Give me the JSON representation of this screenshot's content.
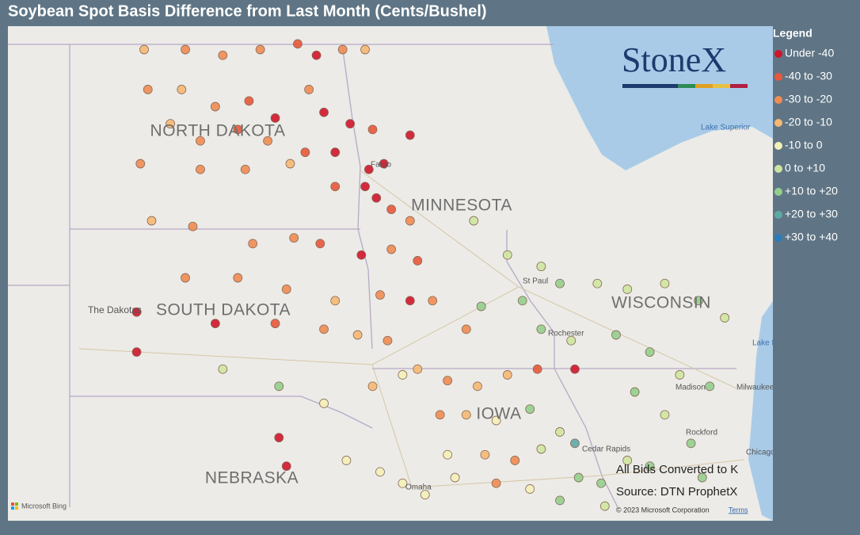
{
  "title": "Soybean Spot Basis Difference from Last Month (Cents/Bushel)",
  "legend": {
    "title": "Legend",
    "items": [
      {
        "label": "Under -40",
        "color": "#d0152b"
      },
      {
        "label": "-40 to -30",
        "color": "#e8583a"
      },
      {
        "label": "-30 to -20",
        "color": "#f08c52"
      },
      {
        "label": "-20 to -10",
        "color": "#f6b872"
      },
      {
        "label": "-10 to 0",
        "color": "#f4f1b8"
      },
      {
        "label": "0 to +10",
        "color": "#cfe59f"
      },
      {
        "label": "+10 to +20",
        "color": "#93cf8c"
      },
      {
        "label": "+20 to +30",
        "color": "#5fa9a3"
      },
      {
        "label": "+30 to +40",
        "color": "#2b7cbb"
      }
    ]
  },
  "logo": "StoneX",
  "map_labels": {
    "states": [
      "NORTH DAKOTA",
      "MINNESOTA",
      "SOUTH DAKOTA",
      "WISCONSIN",
      "NEBRASKA",
      "IOWA",
      "The Dakotas"
    ],
    "cities": [
      "Fargo",
      "St Paul",
      "Rochester",
      "Madison",
      "Milwaukee",
      "Rockford",
      "Cedar Rapids",
      "Omaha",
      "Chicago"
    ],
    "water": [
      "Lake Superior",
      "Lake Michigan"
    ]
  },
  "notes": [
    "All Bids Converted to K",
    "Source: DTN ProphetX"
  ],
  "attribution": {
    "copyright": "© 2023 Microsoft Corporation",
    "terms": "Terms",
    "provider": "Microsoft Bing"
  },
  "points": [
    [
      -103.1,
      48.9,
      3
    ],
    [
      -102.0,
      48.9,
      2
    ],
    [
      -101.0,
      48.8,
      2
    ],
    [
      -100.0,
      48.9,
      2
    ],
    [
      -99.0,
      49.0,
      1
    ],
    [
      -98.5,
      48.8,
      0
    ],
    [
      -97.8,
      48.9,
      2
    ],
    [
      -97.2,
      48.9,
      3
    ],
    [
      -103.0,
      48.2,
      2
    ],
    [
      -102.1,
      48.2,
      3
    ],
    [
      -101.2,
      47.9,
      2
    ],
    [
      -100.3,
      48.0,
      1
    ],
    [
      -99.6,
      47.7,
      0
    ],
    [
      -98.7,
      48.2,
      2
    ],
    [
      -98.3,
      47.8,
      0
    ],
    [
      -97.6,
      47.6,
      0
    ],
    [
      -97.0,
      47.5,
      1
    ],
    [
      -96.0,
      47.4,
      0
    ],
    [
      -102.4,
      47.6,
      3
    ],
    [
      -101.6,
      47.3,
      2
    ],
    [
      -100.6,
      47.5,
      1
    ],
    [
      -99.8,
      47.3,
      2
    ],
    [
      -98.8,
      47.1,
      1
    ],
    [
      -98.0,
      47.1,
      0
    ],
    [
      -97.1,
      46.8,
      0
    ],
    [
      -96.7,
      46.9,
      0
    ],
    [
      -103.2,
      46.9,
      2
    ],
    [
      -101.6,
      46.8,
      2
    ],
    [
      -100.4,
      46.8,
      2
    ],
    [
      -99.2,
      46.9,
      3
    ],
    [
      -98.0,
      46.5,
      1
    ],
    [
      -97.2,
      46.5,
      0
    ],
    [
      -96.9,
      46.3,
      0
    ],
    [
      -96.5,
      46.1,
      1
    ],
    [
      -96.0,
      45.9,
      2
    ],
    [
      -102.9,
      45.9,
      3
    ],
    [
      -101.8,
      45.8,
      2
    ],
    [
      -100.2,
      45.5,
      2
    ],
    [
      -99.1,
      45.6,
      2
    ],
    [
      -98.4,
      45.5,
      1
    ],
    [
      -97.3,
      45.3,
      0
    ],
    [
      -96.5,
      45.4,
      2
    ],
    [
      -95.8,
      45.2,
      1
    ],
    [
      -102.0,
      44.9,
      2
    ],
    [
      -100.6,
      44.9,
      2
    ],
    [
      -99.3,
      44.7,
      2
    ],
    [
      -98.0,
      44.5,
      3
    ],
    [
      -96.8,
      44.6,
      2
    ],
    [
      -96.0,
      44.5,
      0
    ],
    [
      -95.4,
      44.5,
      2
    ],
    [
      -103.3,
      44.3,
      0
    ],
    [
      -101.2,
      44.1,
      0
    ],
    [
      -99.6,
      44.1,
      1
    ],
    [
      -98.3,
      44.0,
      2
    ],
    [
      -97.4,
      43.9,
      3
    ],
    [
      -96.6,
      43.8,
      2
    ],
    [
      -103.3,
      43.6,
      0
    ],
    [
      -101.0,
      43.3,
      5
    ],
    [
      -99.5,
      43.0,
      6
    ],
    [
      -98.3,
      42.7,
      4
    ],
    [
      -97.0,
      43.0,
      3
    ],
    [
      -96.2,
      43.2,
      4
    ],
    [
      -99.5,
      42.1,
      0
    ],
    [
      -99.3,
      41.6,
      0
    ],
    [
      -97.7,
      41.7,
      4
    ],
    [
      -96.8,
      41.5,
      4
    ],
    [
      -96.2,
      41.3,
      4
    ],
    [
      -95.6,
      41.1,
      4
    ],
    [
      -95.8,
      43.3,
      3
    ],
    [
      -95.0,
      43.1,
      2
    ],
    [
      -94.2,
      43.0,
      3
    ],
    [
      -93.4,
      43.2,
      3
    ],
    [
      -92.6,
      43.3,
      1
    ],
    [
      -95.2,
      42.5,
      2
    ],
    [
      -94.5,
      42.5,
      3
    ],
    [
      -93.7,
      42.4,
      4
    ],
    [
      -92.8,
      42.6,
      6
    ],
    [
      -92.0,
      42.2,
      5
    ],
    [
      -91.6,
      42.0,
      7
    ],
    [
      -95.0,
      41.8,
      4
    ],
    [
      -94.0,
      41.8,
      3
    ],
    [
      -93.2,
      41.7,
      2
    ],
    [
      -92.5,
      41.9,
      5
    ],
    [
      -91.5,
      41.4,
      6
    ],
    [
      -90.9,
      41.3,
      6
    ],
    [
      -94.8,
      41.4,
      4
    ],
    [
      -93.7,
      41.3,
      2
    ],
    [
      -92.8,
      41.2,
      4
    ],
    [
      -92.0,
      41.0,
      6
    ],
    [
      -90.8,
      40.9,
      5
    ],
    [
      -94.3,
      45.9,
      5
    ],
    [
      -93.4,
      45.3,
      5
    ],
    [
      -92.5,
      45.1,
      5
    ],
    [
      -92.0,
      44.8,
      6
    ],
    [
      -93.0,
      44.5,
      6
    ],
    [
      -94.1,
      44.4,
      6
    ],
    [
      -92.5,
      44.0,
      6
    ],
    [
      -91.7,
      43.8,
      5
    ],
    [
      -94.5,
      44.0,
      2
    ],
    [
      -91.0,
      44.8,
      5
    ],
    [
      -90.2,
      44.7,
      5
    ],
    [
      -89.2,
      44.8,
      5
    ],
    [
      -88.3,
      44.5,
      6
    ],
    [
      -87.6,
      44.2,
      5
    ],
    [
      -90.5,
      43.9,
      6
    ],
    [
      -89.6,
      43.6,
      6
    ],
    [
      -88.8,
      43.2,
      5
    ],
    [
      -88.0,
      43.0,
      6
    ],
    [
      -90.0,
      42.9,
      6
    ],
    [
      -89.2,
      42.5,
      5
    ],
    [
      -88.5,
      42.0,
      6
    ],
    [
      -89.6,
      41.6,
      6
    ],
    [
      -88.2,
      41.4,
      6
    ],
    [
      -90.2,
      41.7,
      5
    ],
    [
      -91.6,
      43.3,
      0
    ]
  ]
}
